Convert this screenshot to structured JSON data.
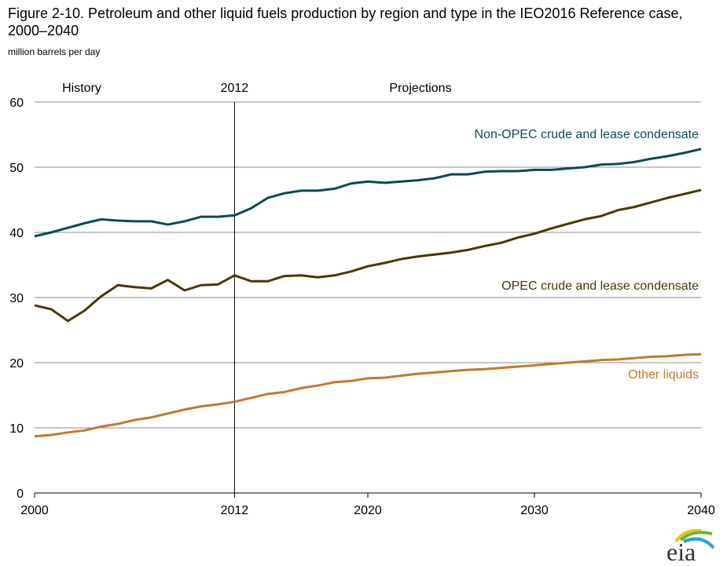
{
  "chart_data": {
    "type": "line",
    "title": "Figure 2-10. Petroleum and other liquid fuels production by region and type in the IEO2016 Reference case, 2000–2040",
    "ylabel": "million barrels per day",
    "xlim": [
      2000,
      2040
    ],
    "ylim": [
      0,
      60
    ],
    "xticks": [
      2000,
      2012,
      2020,
      2030,
      2040
    ],
    "yticks": [
      0,
      10,
      20,
      30,
      40,
      50,
      60
    ],
    "grid": "horizontal",
    "annotations": {
      "history": "History",
      "divider": "2012",
      "projections": "Projections"
    },
    "divider_year": 2012,
    "series": [
      {
        "name": "Non-OPEC crude and lease condensate",
        "color": "#0b4a52",
        "values": [
          39.4,
          40.0,
          40.7,
          41.4,
          42.0,
          41.8,
          41.7,
          41.7,
          41.2,
          41.7,
          42.4,
          42.4,
          42.6,
          43.7,
          45.3,
          46.0,
          46.4,
          46.4,
          46.7,
          47.5,
          47.8,
          47.6,
          47.8,
          48.0,
          48.3,
          48.9,
          48.9,
          49.3,
          49.4,
          49.4,
          49.6,
          49.6,
          49.8,
          50.0,
          50.4,
          50.5,
          50.8,
          51.3,
          51.7,
          52.2,
          52.8
        ]
      },
      {
        "name": "OPEC crude and lease condensate",
        "color": "#4a3708",
        "values": [
          28.8,
          28.2,
          26.4,
          28.0,
          30.2,
          31.9,
          31.6,
          31.4,
          32.7,
          31.1,
          31.9,
          32.0,
          33.4,
          32.5,
          32.5,
          33.3,
          33.4,
          33.1,
          33.4,
          34.0,
          34.8,
          35.3,
          35.9,
          36.3,
          36.6,
          36.9,
          37.3,
          37.9,
          38.4,
          39.2,
          39.8,
          40.6,
          41.3,
          42.0,
          42.5,
          43.4,
          43.9,
          44.6,
          45.3,
          45.9,
          46.5
        ]
      },
      {
        "name": "Other liquids",
        "color": "#c17a2c",
        "values": [
          8.7,
          8.9,
          9.3,
          9.6,
          10.2,
          10.6,
          11.2,
          11.6,
          12.2,
          12.8,
          13.3,
          13.6,
          14.0,
          14.6,
          15.2,
          15.5,
          16.1,
          16.5,
          17.0,
          17.2,
          17.6,
          17.7,
          18.0,
          18.3,
          18.5,
          18.7,
          18.9,
          19.0,
          19.2,
          19.4,
          19.6,
          19.8,
          20.0,
          20.2,
          20.4,
          20.5,
          20.7,
          20.9,
          21.0,
          21.2,
          21.3
        ]
      }
    ]
  },
  "logo_text": "eia"
}
